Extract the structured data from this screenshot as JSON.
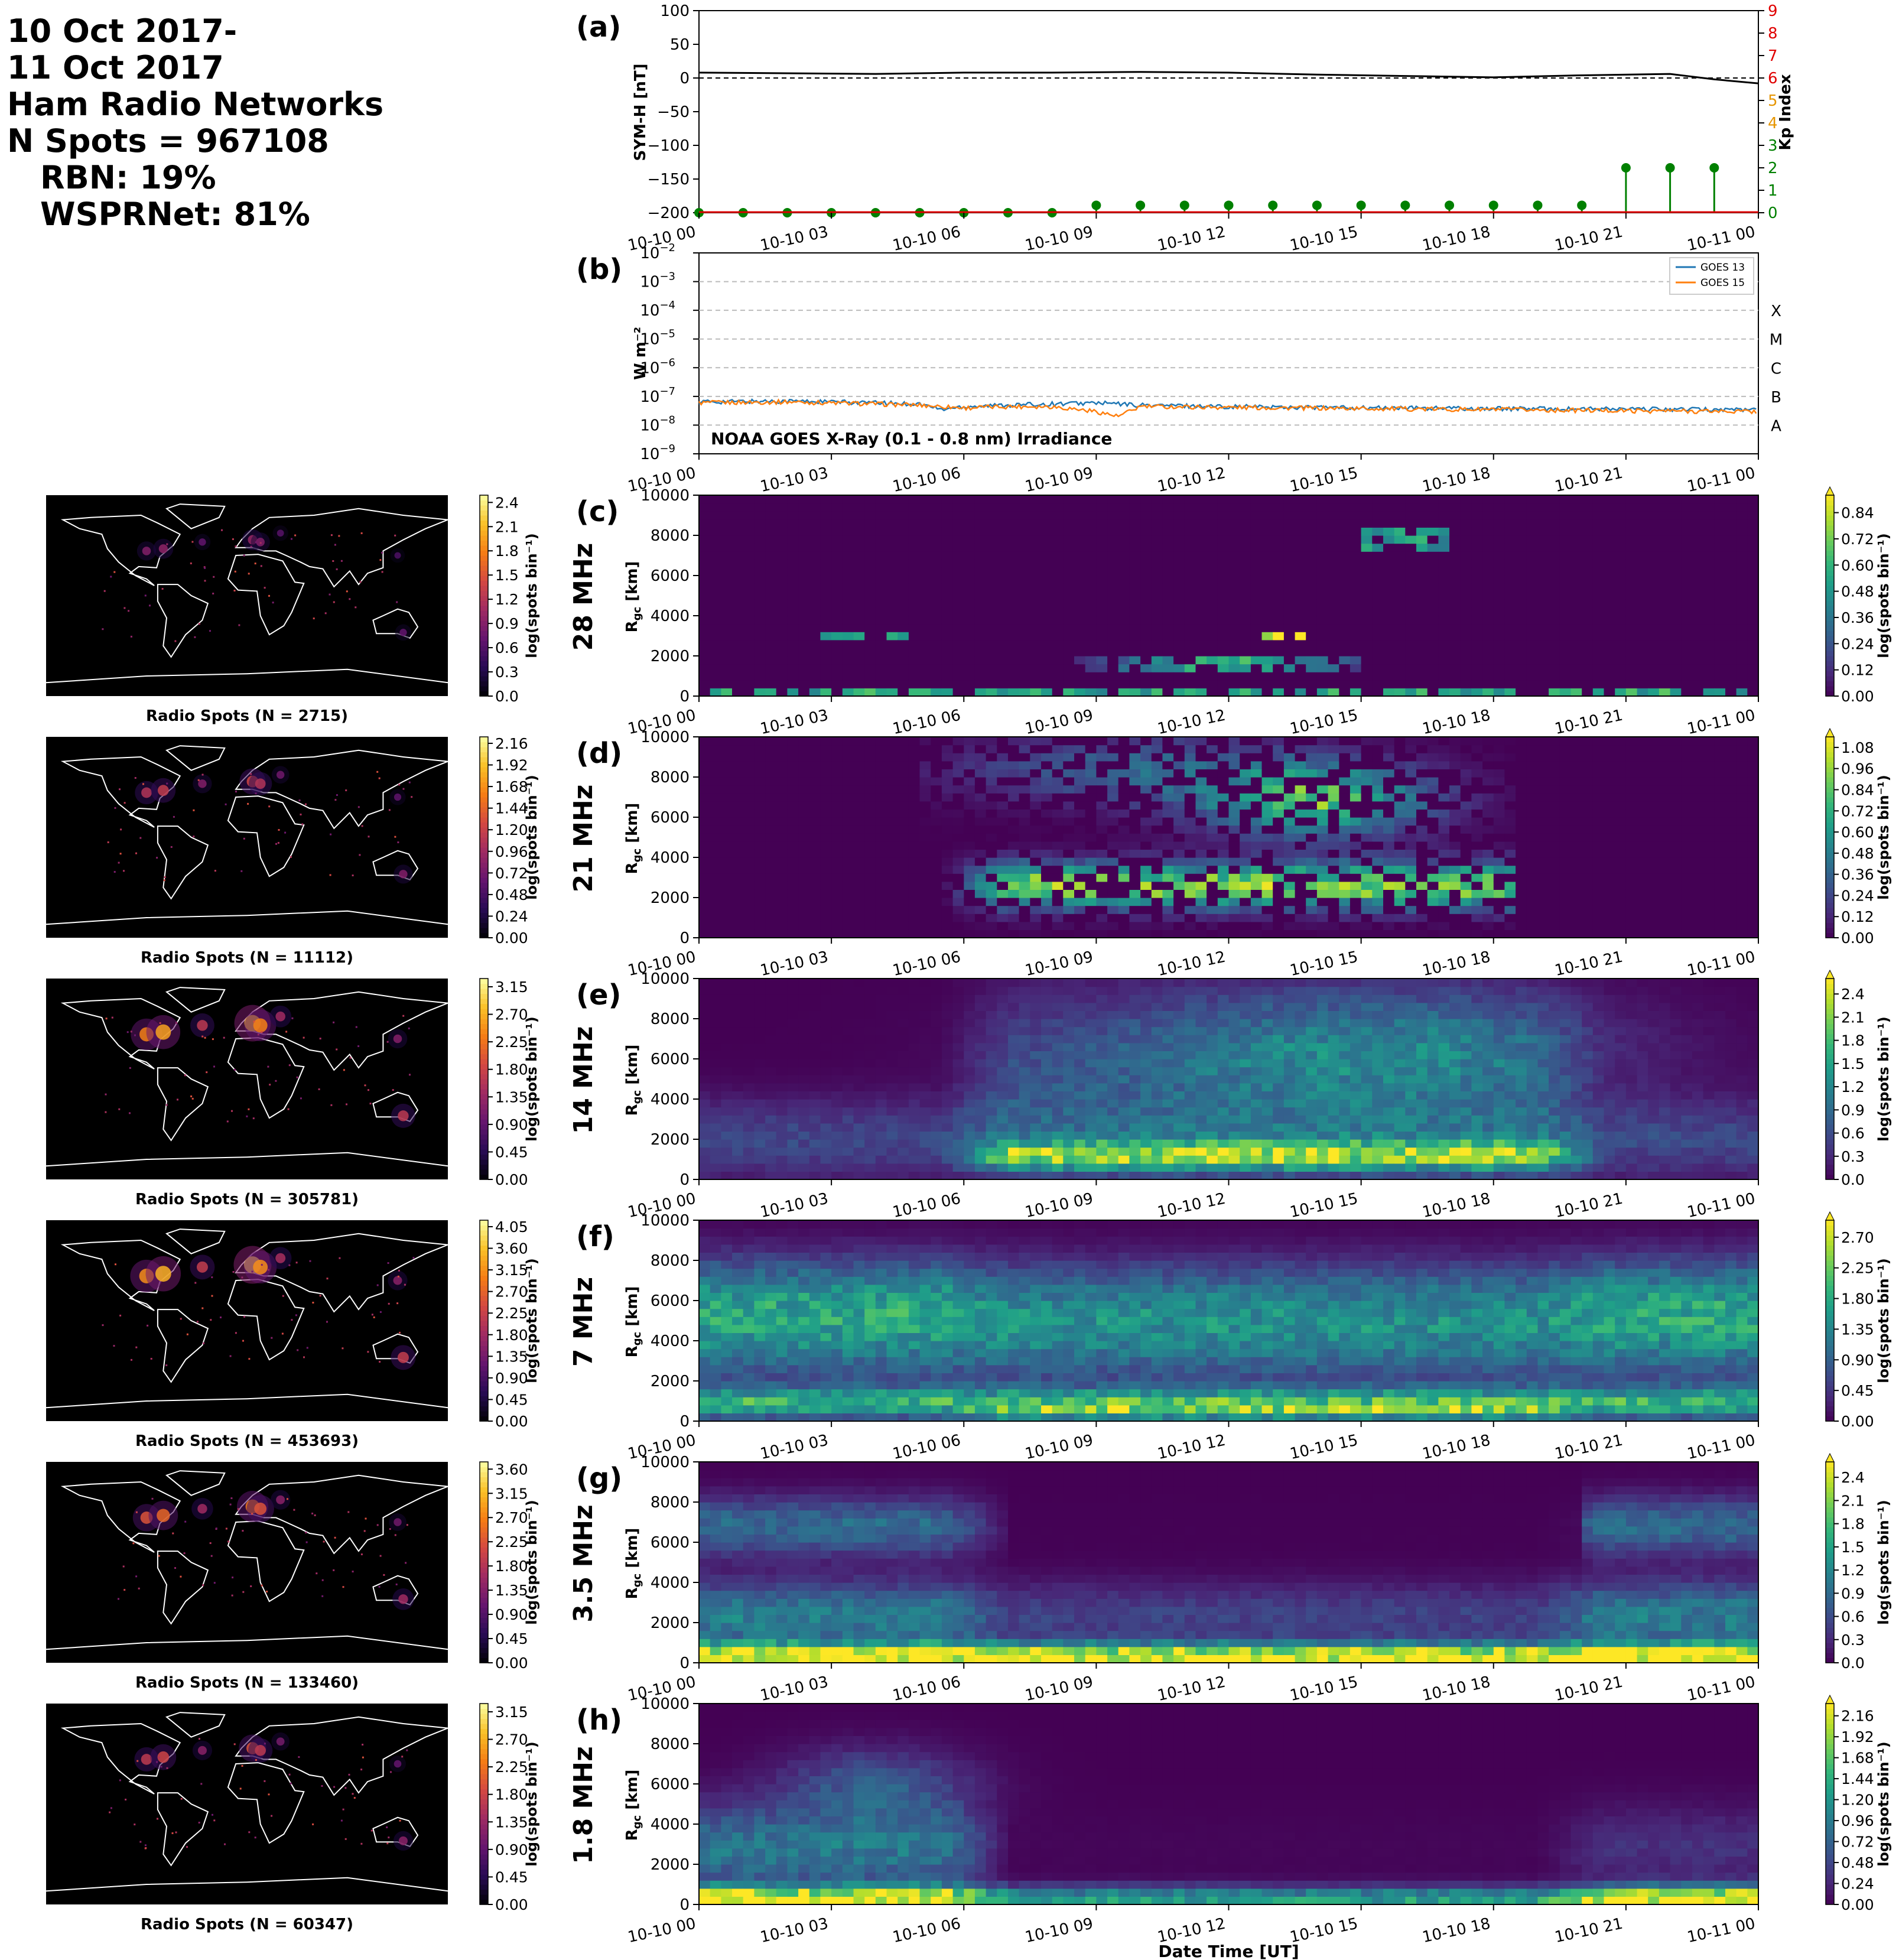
{
  "header": {
    "line1": "10 Oct 2017-",
    "line2": "11 Oct 2017",
    "line3": "Ham Radio Networks",
    "line4": "N Spots = 967108",
    "line5": "RBN: 19%",
    "line6": "WSPRNet: 81%"
  },
  "time_ticks": [
    "10-10 00",
    "10-10 03",
    "10-10 06",
    "10-10 09",
    "10-10 12",
    "10-10 15",
    "10-10 18",
    "10-10 21",
    "10-11 00"
  ],
  "xlabel": "Date Time [UT]",
  "map_panels": [
    {
      "caption": "Radio Spots (N = 2715)",
      "cbar_label": "log(spots bin⁻¹)",
      "cbar_ticks": [
        "0.0",
        "0.3",
        "0.6",
        "0.9",
        "1.2",
        "1.5",
        "1.8",
        "2.1",
        "2.4"
      ]
    },
    {
      "caption": "Radio Spots (N = 11112)",
      "cbar_label": "log(spots bin⁻¹)",
      "cbar_ticks": [
        "0.00",
        "0.24",
        "0.48",
        "0.72",
        "0.96",
        "1.20",
        "1.44",
        "1.68",
        "1.92",
        "2.16"
      ]
    },
    {
      "caption": "Radio Spots (N = 305781)",
      "cbar_label": "log(spots bin⁻¹)",
      "cbar_ticks": [
        "0.00",
        "0.45",
        "0.90",
        "1.35",
        "1.80",
        "2.25",
        "2.70",
        "3.15"
      ]
    },
    {
      "caption": "Radio Spots (N = 453693)",
      "cbar_label": "log(spots bin⁻¹)",
      "cbar_ticks": [
        "0.00",
        "0.45",
        "0.90",
        "1.35",
        "1.80",
        "2.25",
        "2.70",
        "3.15",
        "3.60",
        "4.05"
      ]
    },
    {
      "caption": "Radio Spots (N = 133460)",
      "cbar_label": "log(spots bin⁻¹)",
      "cbar_ticks": [
        "0.00",
        "0.45",
        "0.90",
        "1.35",
        "1.80",
        "2.25",
        "2.70",
        "3.15",
        "3.60"
      ]
    },
    {
      "caption": "Radio Spots (N = 60347)",
      "cbar_label": "log(spots bin⁻¹)",
      "cbar_ticks": [
        "0.00",
        "0.45",
        "0.90",
        "1.35",
        "1.80",
        "2.25",
        "2.70",
        "3.15"
      ]
    }
  ],
  "chart_data": [
    {
      "panel": "(a)",
      "type": "line",
      "ylabel": "SYM-H [nT]",
      "ylim": [
        -200,
        100
      ],
      "yticks": [
        "100",
        "50",
        "0",
        "−50",
        "−100",
        "−150",
        "−200"
      ],
      "right_axis": {
        "label": "Kp Index",
        "ylim": [
          0,
          9
        ],
        "ticks": [
          "0",
          "1",
          "2",
          "3",
          "4",
          "5",
          "6",
          "7",
          "8",
          "9"
        ]
      },
      "sym_h": {
        "hours": [
          0,
          2,
          4,
          6,
          8,
          10,
          12,
          14,
          16,
          18,
          20,
          22,
          23,
          24
        ],
        "values": [
          8,
          7,
          6,
          8,
          8,
          9,
          8,
          5,
          3,
          1,
          4,
          6,
          -2,
          -8
        ]
      },
      "kp": {
        "hours": [
          0,
          1,
          2,
          3,
          4,
          5,
          6,
          7,
          8,
          9,
          10,
          11,
          12,
          13,
          14,
          15,
          16,
          17,
          18,
          19,
          20,
          21,
          22,
          23
        ],
        "values": [
          0,
          0,
          0,
          0,
          0,
          0,
          0,
          0,
          0,
          0.33,
          0.33,
          0.33,
          0.33,
          0.33,
          0.33,
          0.33,
          0.33,
          0.33,
          0.33,
          0.33,
          0.33,
          2,
          2,
          2
        ]
      },
      "grid": false
    },
    {
      "panel": "(b)",
      "type": "line",
      "ylabel": "W m⁻²",
      "log_scale": true,
      "ylim": [
        1e-09,
        0.01
      ],
      "flare_classes": [
        "X",
        "M",
        "C",
        "B",
        "A"
      ],
      "annotation": "NOAA GOES X-Ray (0.1 - 0.8 nm) Irradiance",
      "legend": "top-right",
      "series": [
        {
          "name": "GOES 13",
          "color": "#1f77b4",
          "hours": [
            0,
            2,
            4,
            5,
            5.5,
            6,
            7,
            8,
            9,
            10,
            12,
            15,
            18,
            21,
            24
          ],
          "values": [
            6.5e-08,
            7e-08,
            6e-08,
            5.5e-08,
            3.5e-08,
            4.5e-08,
            5e-08,
            5.5e-08,
            6e-08,
            5e-08,
            4.5e-08,
            4e-08,
            3.8e-08,
            3.6e-08,
            3.5e-08
          ]
        },
        {
          "name": "GOES 15",
          "color": "#ff7f0e",
          "hours": [
            0,
            2,
            4,
            5,
            6,
            7,
            8,
            9,
            9.5,
            10,
            12,
            15,
            18,
            21,
            24
          ],
          "values": [
            6e-08,
            6.5e-08,
            5.5e-08,
            5e-08,
            4e-08,
            4.5e-08,
            4.5e-08,
            3e-08,
            2e-08,
            4.5e-08,
            4.2e-08,
            3.8e-08,
            3.5e-08,
            3.2e-08,
            3e-08
          ]
        }
      ]
    },
    {
      "panel": "(c)",
      "type": "heatmap",
      "band": "28 MHz",
      "ylabel": "R_gc [km]",
      "ylim": [
        0,
        10000
      ],
      "yticks": [
        "0",
        "2000",
        "4000",
        "6000",
        "8000",
        "10000"
      ],
      "cbar_label": "log(spots bin⁻¹)",
      "cbar_ticks": [
        "0.00",
        "0.12",
        "0.24",
        "0.36",
        "0.48",
        "0.60",
        "0.72",
        "0.84"
      ],
      "vmax": 0.92,
      "pattern": "sparse"
    },
    {
      "panel": "(d)",
      "type": "heatmap",
      "band": "21 MHz",
      "ylabel": "R_gc [km]",
      "ylim": [
        0,
        10000
      ],
      "yticks": [
        "0",
        "2000",
        "4000",
        "6000",
        "8000",
        "10000"
      ],
      "cbar_label": "log(spots bin⁻¹)",
      "cbar_ticks": [
        "0.00",
        "0.12",
        "0.24",
        "0.36",
        "0.48",
        "0.60",
        "0.72",
        "0.84",
        "0.96",
        "1.08"
      ],
      "vmax": 1.14,
      "pattern": "dayside"
    },
    {
      "panel": "(e)",
      "type": "heatmap",
      "band": "14 MHz",
      "ylabel": "R_gc [km]",
      "ylim": [
        0,
        10000
      ],
      "yticks": [
        "0",
        "2000",
        "4000",
        "6000",
        "8000",
        "10000"
      ],
      "cbar_label": "log(spots bin⁻¹)",
      "cbar_ticks": [
        "0.0",
        "0.3",
        "0.6",
        "0.9",
        "1.2",
        "1.5",
        "1.8",
        "2.1",
        "2.4"
      ],
      "vmax": 2.6,
      "pattern": "day_broad"
    },
    {
      "panel": "(f)",
      "type": "heatmap",
      "band": "7 MHz",
      "ylabel": "R_gc [km]",
      "ylim": [
        0,
        10000
      ],
      "yticks": [
        "0",
        "2000",
        "4000",
        "6000",
        "8000",
        "10000"
      ],
      "cbar_label": "log(spots bin⁻¹)",
      "cbar_ticks": [
        "0.00",
        "0.45",
        "0.90",
        "1.35",
        "1.80",
        "2.25",
        "2.70"
      ],
      "vmax": 2.95,
      "pattern": "all_day"
    },
    {
      "panel": "(g)",
      "type": "heatmap",
      "band": "3.5 MHz",
      "ylabel": "R_gc [km]",
      "ylim": [
        0,
        10000
      ],
      "yticks": [
        "0",
        "2000",
        "4000",
        "6000",
        "8000",
        "10000"
      ],
      "cbar_label": "log(spots bin⁻¹)",
      "cbar_ticks": [
        "0.0",
        "0.3",
        "0.6",
        "0.9",
        "1.2",
        "1.5",
        "1.8",
        "2.1",
        "2.4"
      ],
      "vmax": 2.6,
      "pattern": "night"
    },
    {
      "panel": "(h)",
      "type": "heatmap",
      "band": "1.8 MHz",
      "ylabel": "R_gc [km]",
      "ylim": [
        0,
        10000
      ],
      "yticks": [
        "0",
        "2000",
        "4000",
        "6000",
        "8000",
        "10000"
      ],
      "cbar_label": "log(spots bin⁻¹)",
      "cbar_ticks": [
        "0.00",
        "0.24",
        "0.48",
        "0.72",
        "0.96",
        "1.20",
        "1.44",
        "1.68",
        "1.92",
        "2.16"
      ],
      "vmax": 2.3,
      "pattern": "night_low"
    }
  ]
}
